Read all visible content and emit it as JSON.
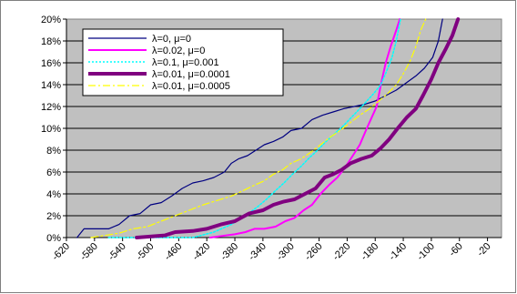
{
  "chart_data": {
    "type": "line",
    "title": "",
    "xlabel": "",
    "ylabel": "",
    "xlim": [
      -620,
      0
    ],
    "ylim": [
      0,
      0.2
    ],
    "x_ticks": [
      "-620",
      "-580",
      "-540",
      "-500",
      "-460",
      "-420",
      "-380",
      "-340",
      "-300",
      "-260",
      "-220",
      "-180",
      "-140",
      "-100",
      "-60",
      "-20"
    ],
    "y_ticks": [
      "0%",
      "2%",
      "4%",
      "6%",
      "8%",
      "10%",
      "12%",
      "14%",
      "16%",
      "18%",
      "20%"
    ],
    "grid": "horizontal",
    "legend_position": "top-left",
    "background": "#c0c0c0",
    "series": [
      {
        "name": "λ=0, μ=0",
        "color": "#000080",
        "style": "solid",
        "width": 1.2,
        "points": [
          [
            -605,
            0.0
          ],
          [
            -595,
            0.008
          ],
          [
            -585,
            0.008
          ],
          [
            -560,
            0.008
          ],
          [
            -545,
            0.012
          ],
          [
            -530,
            0.02
          ],
          [
            -515,
            0.022
          ],
          [
            -500,
            0.03
          ],
          [
            -485,
            0.032
          ],
          [
            -470,
            0.038
          ],
          [
            -455,
            0.045
          ],
          [
            -440,
            0.05
          ],
          [
            -425,
            0.052
          ],
          [
            -410,
            0.055
          ],
          [
            -395,
            0.06
          ],
          [
            -385,
            0.068
          ],
          [
            -375,
            0.072
          ],
          [
            -362,
            0.075
          ],
          [
            -350,
            0.08
          ],
          [
            -338,
            0.085
          ],
          [
            -325,
            0.088
          ],
          [
            -312,
            0.092
          ],
          [
            -300,
            0.098
          ],
          [
            -285,
            0.1
          ],
          [
            -270,
            0.108
          ],
          [
            -255,
            0.112
          ],
          [
            -240,
            0.115
          ],
          [
            -225,
            0.118
          ],
          [
            -210,
            0.12
          ],
          [
            -195,
            0.122
          ],
          [
            -180,
            0.125
          ],
          [
            -165,
            0.13
          ],
          [
            -150,
            0.135
          ],
          [
            -135,
            0.142
          ],
          [
            -122,
            0.148
          ],
          [
            -110,
            0.155
          ],
          [
            -98,
            0.165
          ],
          [
            -90,
            0.18
          ],
          [
            -84,
            0.2
          ]
        ]
      },
      {
        "name": "λ=0.02, μ=0",
        "color": "#ff00ff",
        "style": "solid",
        "width": 2.0,
        "points": [
          [
            -415,
            0.0
          ],
          [
            -380,
            0.003
          ],
          [
            -365,
            0.005
          ],
          [
            -352,
            0.008
          ],
          [
            -338,
            0.008
          ],
          [
            -322,
            0.01
          ],
          [
            -308,
            0.015
          ],
          [
            -295,
            0.018
          ],
          [
            -282,
            0.025
          ],
          [
            -270,
            0.03
          ],
          [
            -258,
            0.04
          ],
          [
            -246,
            0.048
          ],
          [
            -234,
            0.055
          ],
          [
            -222,
            0.065
          ],
          [
            -212,
            0.075
          ],
          [
            -202,
            0.085
          ],
          [
            -192,
            0.1
          ],
          [
            -185,
            0.11
          ],
          [
            -178,
            0.12
          ],
          [
            -172,
            0.14
          ],
          [
            -165,
            0.16
          ],
          [
            -158,
            0.175
          ],
          [
            -150,
            0.19
          ],
          [
            -145,
            0.2
          ]
        ]
      },
      {
        "name": "λ=0.1, μ=0.001",
        "color": "#00ffff",
        "style": "dotted",
        "width": 1.5,
        "points": [
          [
            -560,
            0.0
          ],
          [
            -540,
            0.0
          ],
          [
            -500,
            0.0
          ],
          [
            -470,
            0.0
          ],
          [
            -440,
            0.0
          ],
          [
            -410,
            0.005
          ],
          [
            -385,
            0.012
          ],
          [
            -365,
            0.02
          ],
          [
            -348,
            0.028
          ],
          [
            -335,
            0.035
          ],
          [
            -322,
            0.043
          ],
          [
            -310,
            0.05
          ],
          [
            -298,
            0.058
          ],
          [
            -286,
            0.065
          ],
          [
            -274,
            0.073
          ],
          [
            -262,
            0.08
          ],
          [
            -250,
            0.088
          ],
          [
            -238,
            0.095
          ],
          [
            -226,
            0.102
          ],
          [
            -214,
            0.11
          ],
          [
            -202,
            0.118
          ],
          [
            -192,
            0.125
          ],
          [
            -182,
            0.132
          ],
          [
            -172,
            0.14
          ],
          [
            -164,
            0.152
          ],
          [
            -156,
            0.165
          ],
          [
            -150,
            0.18
          ],
          [
            -144,
            0.2
          ]
        ]
      },
      {
        "name": "λ=0.01, μ=0.0001",
        "color": "#800080",
        "style": "solid",
        "width": 4.0,
        "points": [
          [
            -520,
            0.0
          ],
          [
            -480,
            0.002
          ],
          [
            -465,
            0.005
          ],
          [
            -440,
            0.006
          ],
          [
            -420,
            0.008
          ],
          [
            -400,
            0.012
          ],
          [
            -380,
            0.015
          ],
          [
            -360,
            0.022
          ],
          [
            -340,
            0.025
          ],
          [
            -325,
            0.03
          ],
          [
            -310,
            0.033
          ],
          [
            -295,
            0.035
          ],
          [
            -280,
            0.04
          ],
          [
            -265,
            0.045
          ],
          [
            -252,
            0.055
          ],
          [
            -240,
            0.058
          ],
          [
            -228,
            0.062
          ],
          [
            -215,
            0.068
          ],
          [
            -200,
            0.072
          ],
          [
            -185,
            0.075
          ],
          [
            -172,
            0.082
          ],
          [
            -160,
            0.09
          ],
          [
            -148,
            0.1
          ],
          [
            -135,
            0.11
          ],
          [
            -122,
            0.118
          ],
          [
            -112,
            0.13
          ],
          [
            -100,
            0.145
          ],
          [
            -90,
            0.16
          ],
          [
            -80,
            0.172
          ],
          [
            -70,
            0.185
          ],
          [
            -62,
            0.2
          ]
        ]
      },
      {
        "name": "λ=0.01, μ=0.0005",
        "color": "#ffff00",
        "style": "dashdot",
        "width": 1.2,
        "points": [
          [
            -585,
            0.0
          ],
          [
            -565,
            0.002
          ],
          [
            -545,
            0.004
          ],
          [
            -525,
            0.008
          ],
          [
            -505,
            0.01
          ],
          [
            -485,
            0.015
          ],
          [
            -465,
            0.02
          ],
          [
            -445,
            0.025
          ],
          [
            -425,
            0.03
          ],
          [
            -405,
            0.034
          ],
          [
            -385,
            0.038
          ],
          [
            -368,
            0.043
          ],
          [
            -352,
            0.048
          ],
          [
            -338,
            0.052
          ],
          [
            -325,
            0.058
          ],
          [
            -312,
            0.062
          ],
          [
            -300,
            0.068
          ],
          [
            -286,
            0.072
          ],
          [
            -272,
            0.078
          ],
          [
            -258,
            0.085
          ],
          [
            -244,
            0.092
          ],
          [
            -230,
            0.098
          ],
          [
            -216,
            0.105
          ],
          [
            -202,
            0.112
          ],
          [
            -188,
            0.118
          ],
          [
            -175,
            0.125
          ],
          [
            -162,
            0.132
          ],
          [
            -150,
            0.14
          ],
          [
            -140,
            0.15
          ],
          [
            -130,
            0.162
          ],
          [
            -122,
            0.175
          ],
          [
            -115,
            0.19
          ],
          [
            -108,
            0.2
          ]
        ]
      }
    ]
  }
}
